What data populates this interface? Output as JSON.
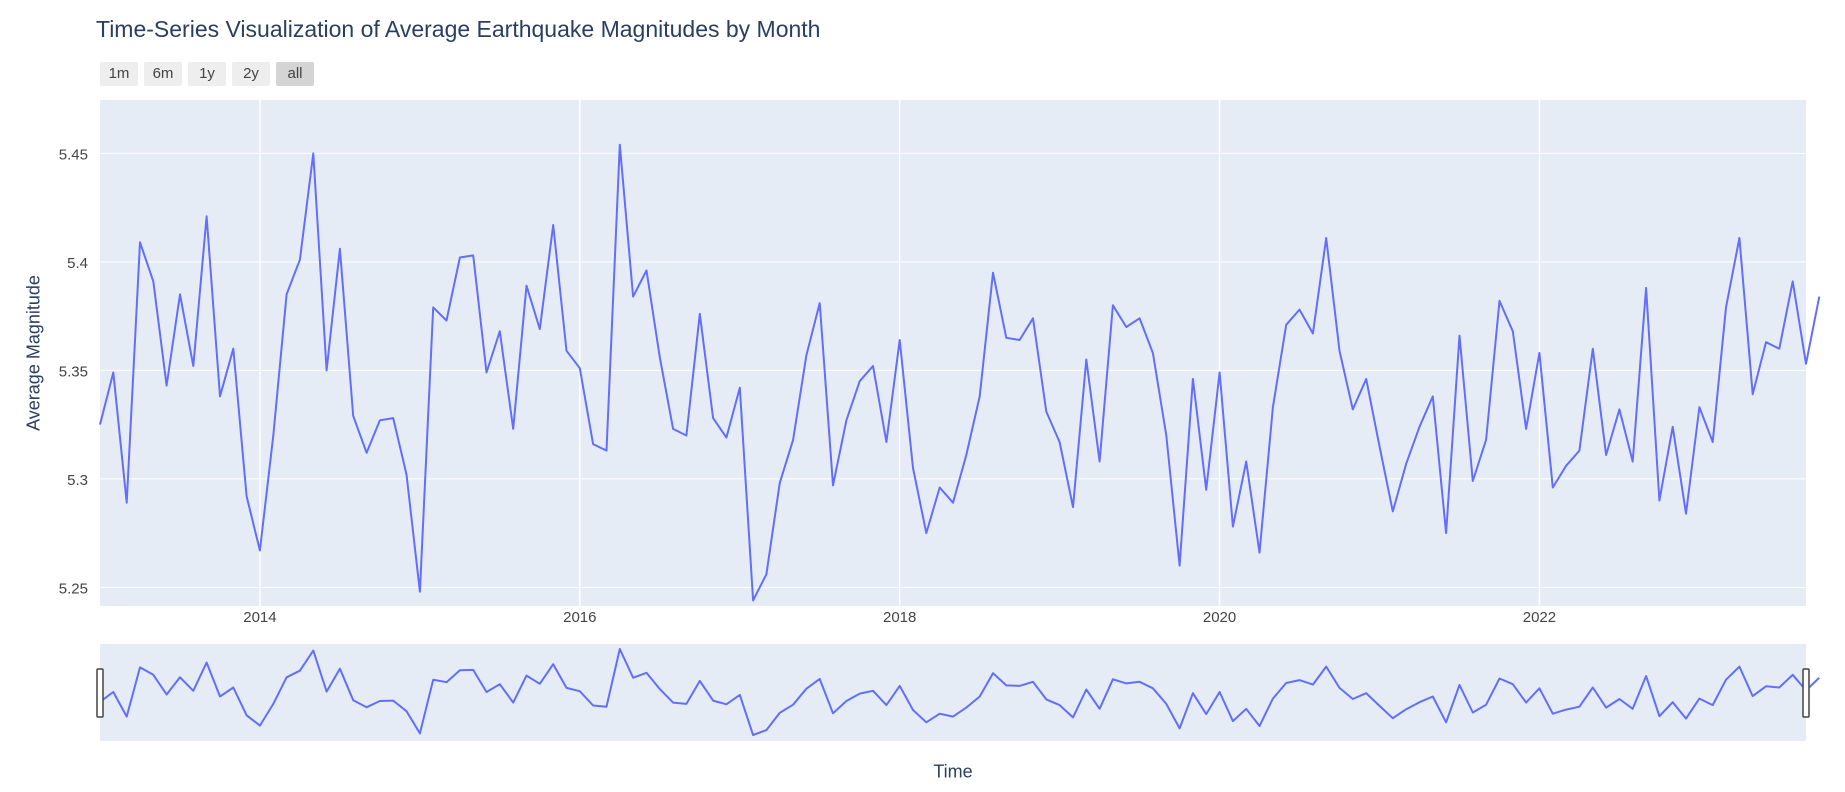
{
  "title": "Time-Series Visualization of Average Earthquake Magnitudes by Month",
  "range_selector": {
    "buttons": [
      {
        "label": "1m",
        "active": false
      },
      {
        "label": "6m",
        "active": false
      },
      {
        "label": "1y",
        "active": false
      },
      {
        "label": "2y",
        "active": false
      },
      {
        "label": "all",
        "active": true
      }
    ]
  },
  "colors": {
    "line": "#636efa",
    "plot_bg": "#e5ecf6",
    "grid": "#ffffff",
    "text": "#2a3f5f"
  },
  "chart_data": {
    "type": "line",
    "title": "Time-Series Visualization of Average Earthquake Magnitudes by Month",
    "xlabel": "Time",
    "ylabel": "Average Magnitude",
    "x_start": "2013-01",
    "x_end": "2023-09",
    "xlim": [
      "2013-01",
      "2023-09"
    ],
    "ylim": [
      5.2414,
      5.4746
    ],
    "x_ticks": [
      "2014",
      "2016",
      "2018",
      "2020",
      "2022"
    ],
    "y_ticks": [
      5.25,
      5.3,
      5.35,
      5.4,
      5.45
    ],
    "y_tick_labels": [
      "5.25",
      "5.3",
      "5.35",
      "5.4",
      "5.45"
    ],
    "grid": true,
    "rangeslider": true,
    "series": [
      {
        "values": [
          5.325,
          5.349,
          5.289,
          5.409,
          5.391,
          5.343,
          5.385,
          5.352,
          5.421,
          5.338,
          5.36,
          5.292,
          5.267,
          5.32,
          5.385,
          5.401,
          5.45,
          5.35,
          5.406,
          5.329,
          5.312,
          5.327,
          5.328,
          5.302,
          5.248,
          5.379,
          5.373,
          5.402,
          5.403,
          5.349,
          5.368,
          5.323,
          5.389,
          5.369,
          5.417,
          5.359,
          5.351,
          5.316,
          5.313,
          5.454,
          5.384,
          5.396,
          5.356,
          5.323,
          5.32,
          5.376,
          5.328,
          5.319,
          5.342,
          5.244,
          5.256,
          5.298,
          5.318,
          5.357,
          5.381,
          5.297,
          5.327,
          5.345,
          5.352,
          5.317,
          5.364,
          5.305,
          5.275,
          5.296,
          5.289,
          5.311,
          5.338,
          5.395,
          5.365,
          5.364,
          5.374,
          5.331,
          5.317,
          5.287,
          5.355,
          5.308,
          5.38,
          5.37,
          5.374,
          5.358,
          5.32,
          5.26,
          5.346,
          5.295,
          5.349,
          5.278,
          5.308,
          5.266,
          5.333,
          5.371,
          5.378,
          5.367,
          5.411,
          5.359,
          5.332,
          5.346,
          5.315,
          5.285,
          5.307,
          5.324,
          5.338,
          5.275,
          5.366,
          5.299,
          5.318,
          5.382,
          5.368,
          5.323,
          5.358,
          5.296,
          5.306,
          5.313,
          5.36,
          5.311,
          5.332,
          5.308,
          5.388,
          5.29,
          5.324,
          5.284,
          5.333,
          5.317,
          5.379,
          5.411,
          5.339,
          5.363,
          5.36,
          5.391,
          5.353,
          5.384
        ]
      }
    ]
  }
}
